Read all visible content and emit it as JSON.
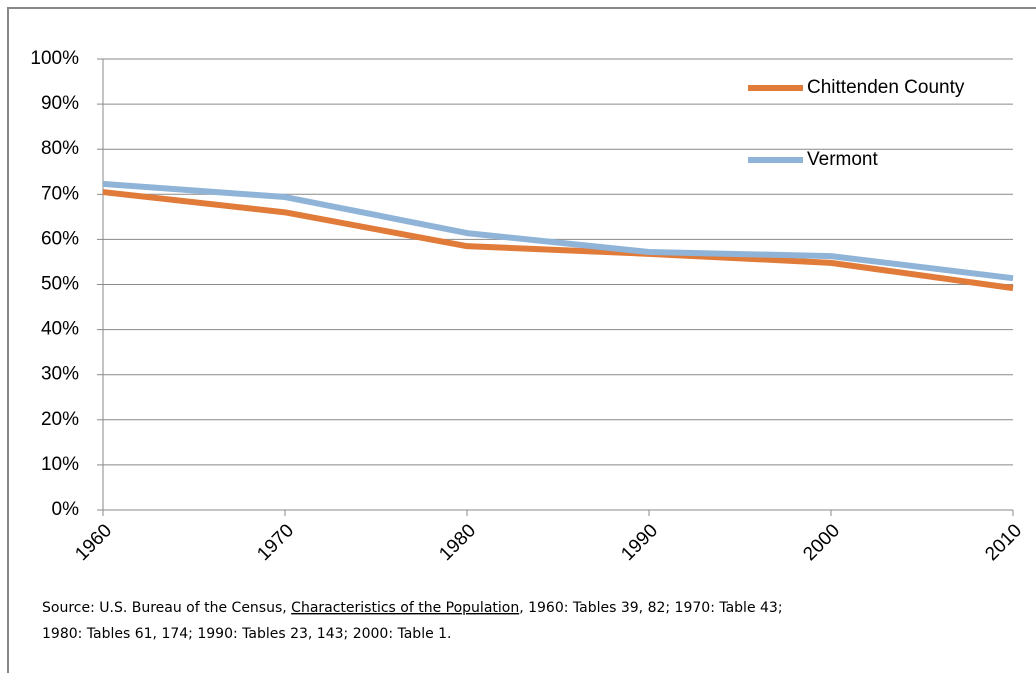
{
  "chart_data": {
    "type": "line",
    "x": [
      1960,
      1970,
      1980,
      1990,
      2000,
      2010
    ],
    "xlim": [
      1960,
      2010
    ],
    "xticks": [
      1960,
      1970,
      1980,
      1990,
      2000,
      2010
    ],
    "ylim": [
      0,
      100
    ],
    "yticks": [
      {
        "value": 0,
        "label": "0%"
      },
      {
        "value": 10,
        "label": "10%"
      },
      {
        "value": 20,
        "label": "20%"
      },
      {
        "value": 30,
        "label": "30%"
      },
      {
        "value": 40,
        "label": "40%"
      },
      {
        "value": 50,
        "label": "50%"
      },
      {
        "value": 60,
        "label": "60%"
      },
      {
        "value": 70,
        "label": "70%"
      },
      {
        "value": 80,
        "label": "80%"
      },
      {
        "value": 90,
        "label": "90%"
      },
      {
        "value": 100,
        "label": "100%"
      }
    ],
    "grid": true,
    "legend": "upper-right",
    "series": [
      {
        "name": "Chittenden County",
        "color": "#e07b39",
        "values": [
          70.5,
          66,
          58.5,
          56.8,
          54.8,
          49.2
        ]
      },
      {
        "name": "Vermont",
        "color": "#8fb4d8",
        "values": [
          72.3,
          69.4,
          61.4,
          57.2,
          56.3,
          51.4
        ]
      }
    ],
    "note": {
      "prefix": "Source: U.S. Bureau of the Census, ",
      "title": "Characteristics of the Population",
      "suffix": ", 1960: Tables 39, 82; 1970: Table 43;",
      "line2": "1980: Tables 61, 174; 1990: Tables 23, 143; 2000: Table 1."
    }
  }
}
